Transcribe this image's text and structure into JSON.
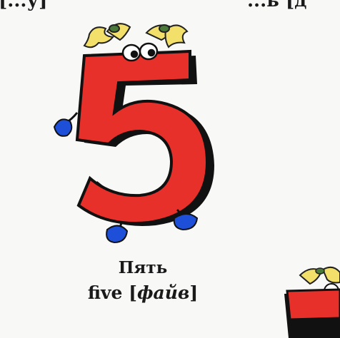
{
  "top_left_text": "[...у]",
  "top_right_text": "...ь [д",
  "caption": {
    "russian": "Пять",
    "english_word": "five",
    "bracket_open": " [",
    "transcription": "файв",
    "bracket_close": "]"
  },
  "colors": {
    "number_red": "#e8302a",
    "outline": "#111111",
    "shoe_blue": "#1e4fd8",
    "hair_yellow": "#f3e06a"
  }
}
